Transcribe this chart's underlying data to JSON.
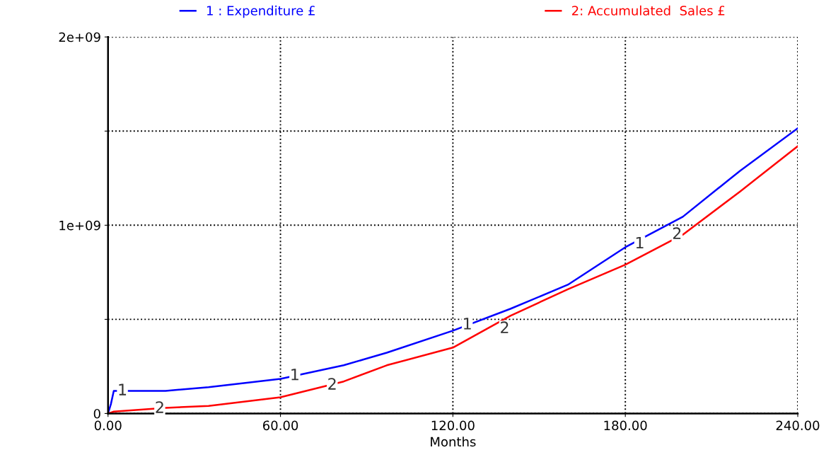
{
  "chart_data": {
    "type": "line",
    "xlabel": "Months",
    "x": [
      0,
      1,
      2,
      20,
      35,
      60,
      82,
      97,
      120,
      140,
      160,
      180,
      200,
      220,
      240
    ],
    "series": [
      {
        "name": "1 : Expenditure £",
        "color": "#0000ff",
        "values": [
          0,
          50000000,
          120000000,
          120000000,
          140000000,
          184000000,
          256000000,
          323000000,
          440000000,
          556000000,
          684000000,
          883000000,
          1045000000,
          1290000000,
          1515000000
        ]
      },
      {
        "name": "2: Accumulated  Sales £",
        "color": "#ff0000",
        "values": [
          0,
          5000000,
          10000000,
          30000000,
          40000000,
          86000000,
          170000000,
          256000000,
          350000000,
          519000000,
          660000000,
          790000000,
          950000000,
          1180000000,
          1420000000
        ]
      }
    ],
    "xlim": [
      0,
      240
    ],
    "xticks": [
      {
        "value": 0,
        "label": "0.00"
      },
      {
        "value": 60,
        "label": "60.00"
      },
      {
        "value": 120,
        "label": "120.00"
      },
      {
        "value": 180,
        "label": "180.00"
      },
      {
        "value": 240,
        "label": "240.00"
      }
    ],
    "ylim": [
      0,
      2000000000
    ],
    "yticks": [
      {
        "value": 0,
        "label": "0"
      },
      {
        "value": 500000000,
        "label": null
      },
      {
        "value": 1000000000,
        "label": "1e+09"
      },
      {
        "value": 1500000000,
        "label": null
      },
      {
        "value": 2000000000,
        "label": "2e+09"
      }
    ],
    "annotations": [
      {
        "text": "1",
        "x": 5,
        "y": 120000000
      },
      {
        "text": "1",
        "x": 65,
        "y": 200000000
      },
      {
        "text": "1",
        "x": 125,
        "y": 470000000
      },
      {
        "text": "1",
        "x": 185,
        "y": 900000000
      },
      {
        "text": "2",
        "x": 18,
        "y": 26000000
      },
      {
        "text": "2",
        "x": 78,
        "y": 150000000
      },
      {
        "text": "2",
        "x": 138,
        "y": 450000000
      },
      {
        "text": "2",
        "x": 198,
        "y": 950000000
      }
    ],
    "grid": true,
    "legend": "top",
    "marker": "none",
    "line_style": "solid"
  }
}
